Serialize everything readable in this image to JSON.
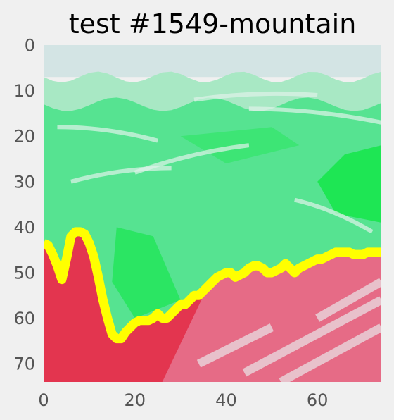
{
  "chart_data": {
    "type": "heatmap",
    "title": "test #1549-mountain",
    "xlabel": "",
    "ylabel": "",
    "xlim": [
      0,
      74
    ],
    "ylim": [
      74,
      0
    ],
    "x_ticks": [
      0,
      20,
      40,
      60
    ],
    "y_ticks": [
      0,
      10,
      20,
      30,
      40,
      50,
      60,
      70
    ],
    "grid": false,
    "colors": {
      "background": "#f0f0f0",
      "sky": "#d3e4e4",
      "haze": "#a8e8c4",
      "mountain_green": "#56e391",
      "bright_green": "#1ee654",
      "foreground_red": "#e3354f",
      "foreground_pink": "#e66b86",
      "mask_outline": "#ffff00"
    },
    "mask_boundary": [
      [
        0,
        43.5
      ],
      [
        1,
        44
      ],
      [
        2,
        46
      ],
      [
        3,
        48.5
      ],
      [
        4,
        51.5
      ],
      [
        5,
        47
      ],
      [
        6,
        42
      ],
      [
        7,
        41
      ],
      [
        8,
        41
      ],
      [
        9,
        41.5
      ],
      [
        10,
        43.5
      ],
      [
        11,
        46.5
      ],
      [
        12,
        51
      ],
      [
        13,
        56
      ],
      [
        14,
        60
      ],
      [
        15,
        63.5
      ],
      [
        16,
        64.5
      ],
      [
        17,
        64.5
      ],
      [
        18,
        63
      ],
      [
        19,
        62
      ],
      [
        20,
        61
      ],
      [
        21,
        60.5
      ],
      [
        22,
        60.5
      ],
      [
        23,
        60.5
      ],
      [
        24,
        60
      ],
      [
        25,
        59
      ],
      [
        26,
        60
      ],
      [
        27,
        60
      ],
      [
        28,
        59
      ],
      [
        29,
        58
      ],
      [
        30,
        57
      ],
      [
        31,
        57
      ],
      [
        32,
        56
      ],
      [
        33,
        55
      ],
      [
        34,
        55
      ],
      [
        35,
        54
      ],
      [
        36,
        53
      ],
      [
        37,
        52
      ],
      [
        38,
        51
      ],
      [
        39,
        50.5
      ],
      [
        40,
        50
      ],
      [
        41,
        50
      ],
      [
        42,
        51
      ],
      [
        43,
        50.5
      ],
      [
        44,
        50
      ],
      [
        45,
        49
      ],
      [
        46,
        48.5
      ],
      [
        47,
        48.5
      ],
      [
        48,
        49
      ],
      [
        49,
        50
      ],
      [
        50,
        50
      ],
      [
        51,
        49.5
      ],
      [
        52,
        49
      ],
      [
        53,
        48
      ],
      [
        54,
        49
      ],
      [
        55,
        50
      ],
      [
        56,
        49
      ],
      [
        57,
        48.5
      ],
      [
        58,
        48
      ],
      [
        59,
        47.5
      ],
      [
        60,
        47
      ],
      [
        61,
        47
      ],
      [
        62,
        46.5
      ],
      [
        63,
        46
      ],
      [
        64,
        45.5
      ],
      [
        65,
        45.5
      ],
      [
        66,
        45.5
      ],
      [
        67,
        45.5
      ],
      [
        68,
        46
      ],
      [
        69,
        46
      ],
      [
        70,
        46
      ],
      [
        71,
        45.5
      ],
      [
        72,
        45.5
      ],
      [
        73,
        45.5
      ],
      [
        74,
        45.5
      ]
    ]
  }
}
